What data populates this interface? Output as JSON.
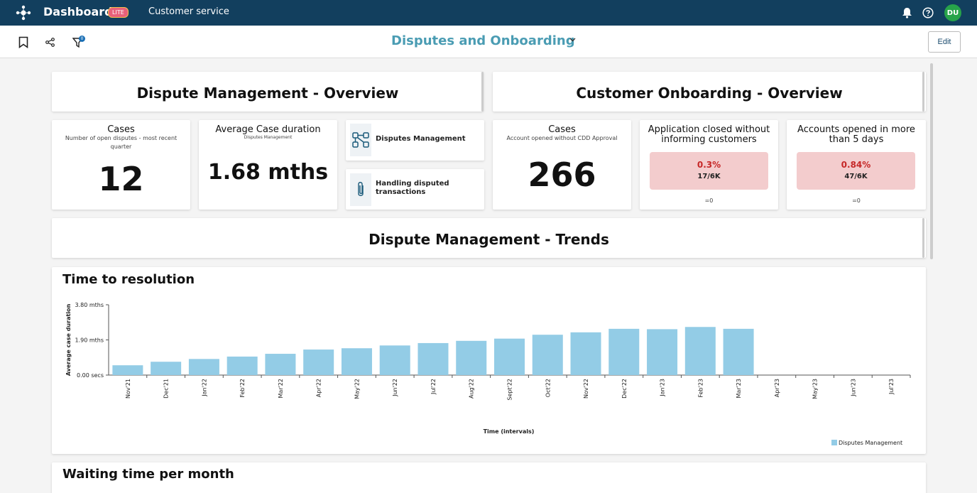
{
  "app": {
    "title": "Dashboard",
    "badge": "LITE",
    "nav_link": "Customer service",
    "avatar_initials": "DU"
  },
  "toolbar": {
    "dashboard_title": "Disputes and Onboarding",
    "edit_label": "Edit",
    "filter_count": "0"
  },
  "dispute_overview": {
    "title": "Dispute Management - Overview"
  },
  "onboarding_overview": {
    "title": "Customer Onboarding - Overview"
  },
  "kpis": {
    "cases": {
      "title": "Cases",
      "subtitle": "Number of open disputes - most recent quarter",
      "value": "12"
    },
    "avg_duration": {
      "title": "Average Case duration",
      "subtitle": "Disputes Management",
      "value": "1.68 mths"
    },
    "onboard_cases": {
      "title": "Cases",
      "subtitle": "Account opened without CDD Approval",
      "value": "266"
    },
    "app_closed": {
      "title": "Application closed without informing customers",
      "pct": "0.3%",
      "frac": "17/6K",
      "change": "=0"
    },
    "accounts_opened": {
      "title": "Accounts opened in more than 5 days",
      "pct": "0.84%",
      "frac": "47/6K",
      "change": "=0"
    }
  },
  "links": {
    "disputes_mgmt": {
      "label": "Disputes Management",
      "icon": "network-icon"
    },
    "handling": {
      "label": "Handling disputed transactions",
      "icon": "paperclip-icon"
    }
  },
  "trends": {
    "title": "Dispute Management - Trends"
  },
  "waiting": {
    "title": "Waiting time per month"
  },
  "colors": {
    "bar": "#93cce6",
    "header_bg": "#123f5e",
    "accent": "#4a9cb3",
    "alert_bg": "#f3cccd",
    "alert_text": "#c62828"
  },
  "chart_data": {
    "type": "bar",
    "title": "Time to resolution",
    "xlabel": "Time (intervals)",
    "ylabel": "Average case duration",
    "y_ticks": [
      "0.00 secs",
      "1.90 mths",
      "3.80 mths"
    ],
    "ylim": [
      0,
      3.8
    ],
    "categories": [
      "Nov'21",
      "Dec'21",
      "Jan'22",
      "Feb'22",
      "Mar'22",
      "Apr'22",
      "May'22",
      "Jun'22",
      "Jul'22",
      "Aug'22",
      "Sept'22",
      "Oct'22",
      "Nov'22",
      "Dec'22",
      "Jan'23",
      "Feb'23",
      "Mar'23",
      "Apr'23",
      "May'23",
      "Jun'23",
      "Jul'23"
    ],
    "series": [
      {
        "name": "Disputes Management",
        "values": [
          0.53,
          0.72,
          0.87,
          1.0,
          1.15,
          1.38,
          1.45,
          1.6,
          1.73,
          1.85,
          1.97,
          2.18,
          2.31,
          2.5,
          2.48,
          2.6,
          2.5,
          null,
          null,
          null,
          null
        ]
      }
    ],
    "legend": "bottom-right",
    "grid": false
  }
}
